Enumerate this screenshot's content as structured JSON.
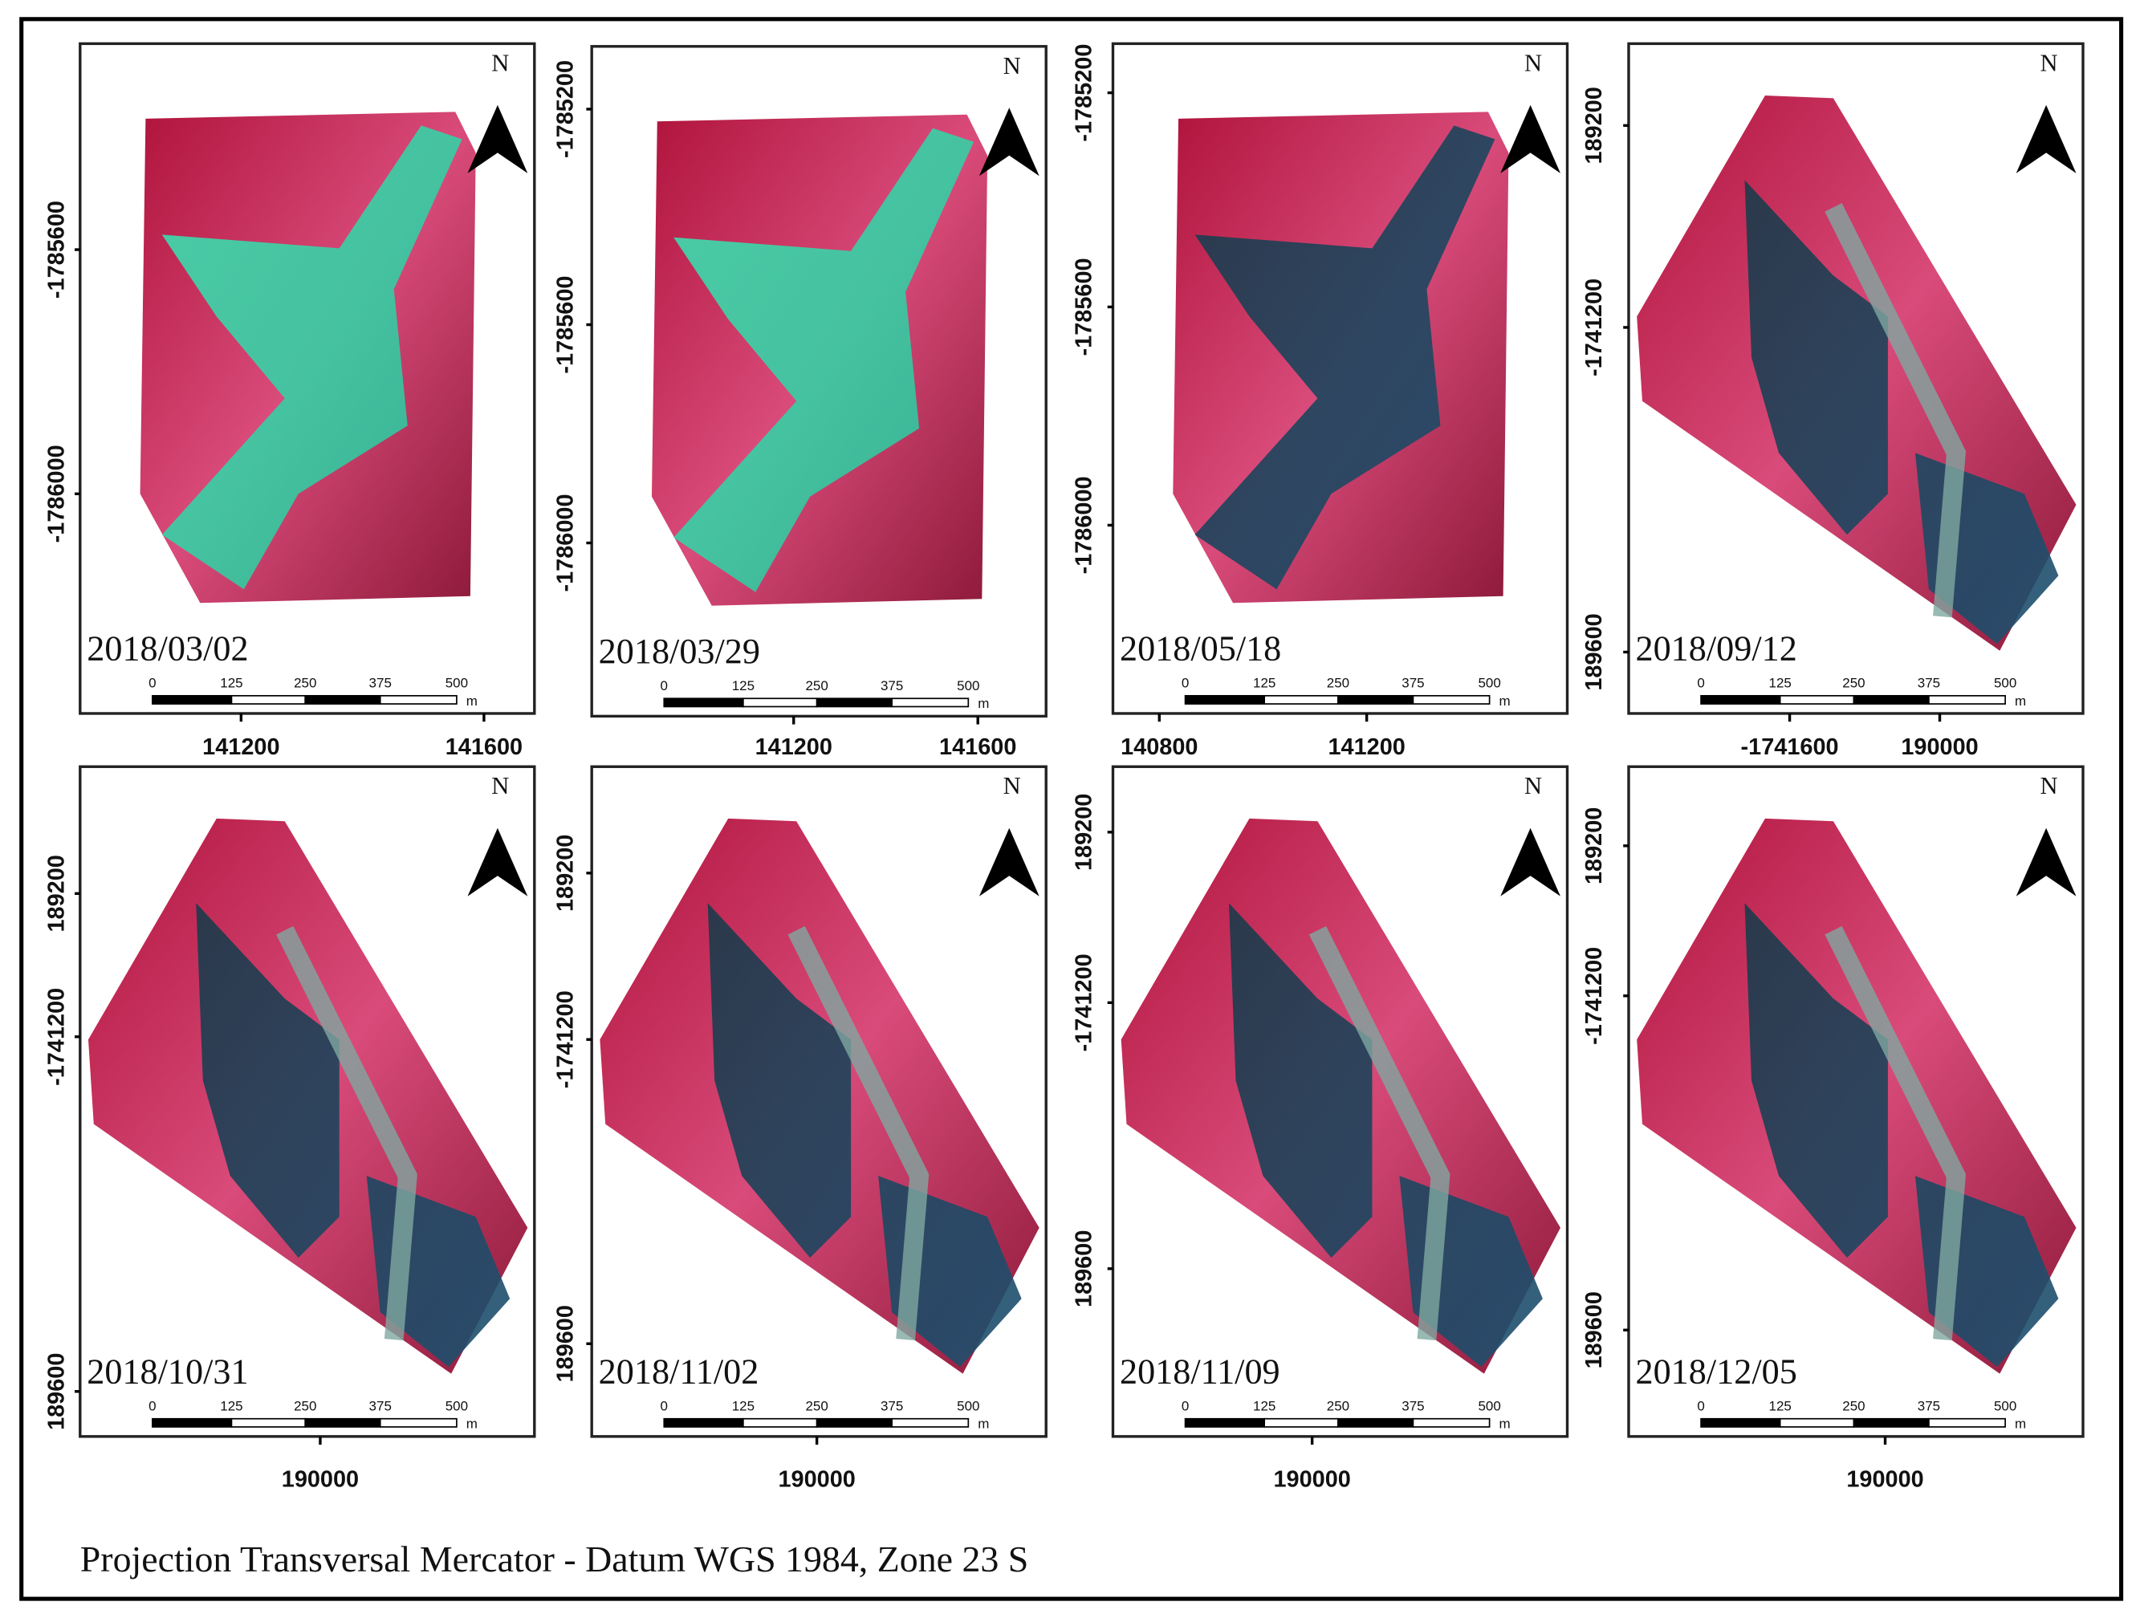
{
  "panels": [
    {
      "date": "2018/03/02",
      "y_labels": [
        "-1785600",
        "-1786000"
      ],
      "x_labels": [
        "141200",
        "141600"
      ]
    },
    {
      "date": "2018/03/29",
      "y_labels": [
        "-1785200",
        "-1785600",
        "-1786000"
      ],
      "x_labels": [
        "141200",
        "141600"
      ]
    },
    {
      "date": "2018/05/18",
      "y_labels": [
        "-1785200",
        "-1785600",
        "-1786000"
      ],
      "x_labels": [
        "140800",
        "141200"
      ]
    },
    {
      "date": "2018/09/12",
      "y_labels": [
        "189200",
        "-1741200",
        "189600"
      ],
      "x_labels": [
        "-1741600",
        "190000"
      ]
    },
    {
      "date": "2018/10/31",
      "y_labels": [
        "189200",
        "-1741200",
        "189600"
      ],
      "x_labels": [
        "190000"
      ]
    },
    {
      "date": "2018/11/02",
      "y_labels": [
        "189200",
        "-1741200",
        "189600"
      ],
      "x_labels": [
        "190000"
      ]
    },
    {
      "date": "2018/11/09",
      "y_labels": [
        "189200",
        "-1741200",
        "189600"
      ],
      "x_labels": [
        "190000"
      ]
    },
    {
      "date": "2018/12/05",
      "y_labels": [
        "189200",
        "-1741200",
        "189600"
      ],
      "x_labels": [
        "190000"
      ]
    }
  ],
  "north_label": "N",
  "scale_labels": [
    "0",
    "125",
    "250",
    "375",
    "500",
    "m"
  ],
  "footer": "Projection Transversal Mercator -  Datum WGS 1984, Zone 23 S"
}
